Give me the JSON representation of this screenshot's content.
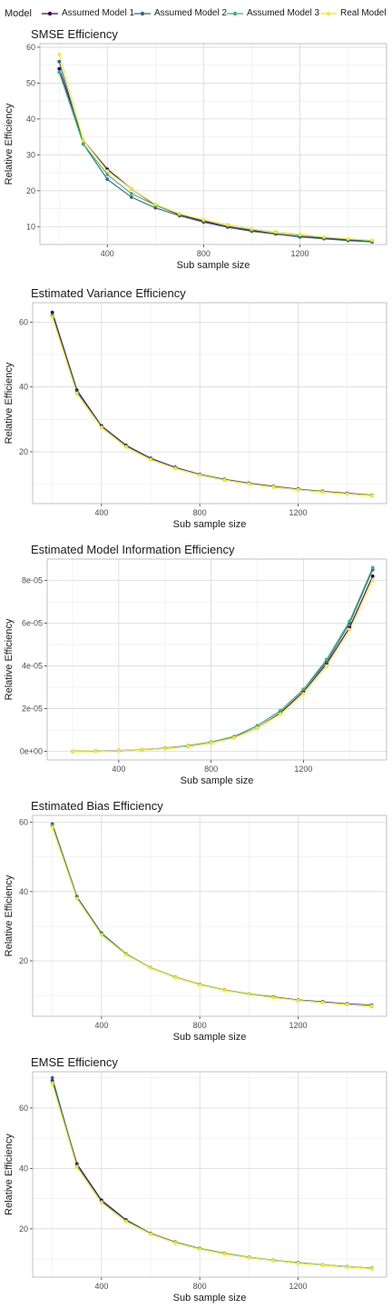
{
  "legend": {
    "title": "Model",
    "items": [
      {
        "label": "Assumed Model 1",
        "color": "#440154"
      },
      {
        "label": "Assumed Model 2",
        "color": "#31688E"
      },
      {
        "label": "Assumed Model 3",
        "color": "#35B779"
      },
      {
        "label": "Real Model",
        "color": "#FDE725"
      }
    ]
  },
  "chart_data": [
    {
      "type": "line",
      "title": "SMSE Efficiency",
      "xlabel": "Sub sample size",
      "ylabel": "Relative Efficiency",
      "xlim": [
        120,
        1560
      ],
      "ylim": [
        5,
        61
      ],
      "xticks": [
        400,
        800,
        1200
      ],
      "xtick_labels": [
        "400",
        "800",
        "1200"
      ],
      "yticks": [
        10,
        20,
        30,
        40,
        50,
        60
      ],
      "ytick_labels": [
        "10",
        "20",
        "30",
        "40",
        "50",
        "60"
      ],
      "grid": true,
      "x": [
        200,
        300,
        400,
        500,
        600,
        700,
        800,
        900,
        1000,
        1100,
        1200,
        1300,
        1400,
        1500
      ],
      "series": [
        {
          "name": "Assumed Model 1",
          "values": [
            54,
            34,
            26,
            20.5,
            16,
            13.3,
            11.5,
            10.0,
            8.9,
            8.0,
            7.2,
            6.8,
            6.3,
            6.0
          ]
        },
        {
          "name": "Assumed Model 2",
          "values": [
            56,
            33,
            23.2,
            18.2,
            15.2,
            13.0,
            11.2,
            9.8,
            8.7,
            7.9,
            7.1,
            6.6,
            6.1,
            5.7
          ]
        },
        {
          "name": "Assumed Model 3",
          "values": [
            53,
            33,
            24.5,
            19.2,
            16.0,
            13.5,
            11.8,
            10.5,
            9.2,
            8.5,
            7.6,
            7.0,
            6.5,
            6.0
          ]
        },
        {
          "name": "Real Model",
          "values": [
            58,
            34,
            25.5,
            20.5,
            16.2,
            13.6,
            11.9,
            10.5,
            9.3,
            8.5,
            7.8,
            7.1,
            6.6,
            6.2
          ]
        }
      ]
    },
    {
      "type": "line",
      "title": "Estimated Variance Efficiency",
      "xlabel": "Sub sample size",
      "ylabel": "Relative Efficiency",
      "xlim": [
        120,
        1560
      ],
      "ylim": [
        4,
        66
      ],
      "xticks": [
        400,
        800,
        1200
      ],
      "xtick_labels": [
        "400",
        "800",
        "1200"
      ],
      "yticks": [
        20,
        40,
        60
      ],
      "ytick_labels": [
        "20",
        "40",
        "60"
      ],
      "grid": true,
      "x": [
        200,
        300,
        400,
        500,
        600,
        700,
        800,
        900,
        1000,
        1100,
        1200,
        1300,
        1400,
        1500
      ],
      "series": [
        {
          "name": "Assumed Model 1",
          "values": [
            63,
            39,
            28,
            22,
            18,
            15.2,
            13,
            11.5,
            10.3,
            9.3,
            8.5,
            7.8,
            7.2,
            6.6
          ]
        },
        {
          "name": "Assumed Model 2",
          "values": [
            62,
            38.5,
            27.7,
            21.8,
            17.8,
            15.0,
            12.9,
            11.4,
            10.2,
            9.2,
            8.4,
            7.7,
            7.1,
            6.5
          ]
        },
        {
          "name": "Assumed Model 3",
          "values": [
            62,
            38,
            27.5,
            21.5,
            17.6,
            14.9,
            12.8,
            11.3,
            10.1,
            9.1,
            8.3,
            7.6,
            7.0,
            6.5
          ]
        },
        {
          "name": "Real Model",
          "values": [
            61.5,
            38,
            27.5,
            21.5,
            17.6,
            14.9,
            12.8,
            11.3,
            10.1,
            9.1,
            8.3,
            7.6,
            7.0,
            6.5
          ]
        }
      ]
    },
    {
      "type": "line",
      "title": "Estimated Model Information Efficiency",
      "xlabel": "Sub sample size",
      "ylabel": "Relative Efficiency",
      "xlim": [
        90,
        1560
      ],
      "ylim": [
        -4e-06,
        9e-05
      ],
      "xticks": [
        400,
        800,
        1200
      ],
      "xtick_labels": [
        "400",
        "800",
        "1200"
      ],
      "yticks": [
        0,
        2e-05,
        4e-05,
        6e-05,
        8e-05
      ],
      "ytick_labels": [
        "0e+00",
        "2e-05",
        "4e-05",
        "6e-05",
        "8e-05"
      ],
      "grid": true,
      "x": [
        200,
        300,
        400,
        500,
        600,
        700,
        800,
        900,
        1000,
        1100,
        1200,
        1300,
        1400,
        1500
      ],
      "series": [
        {
          "name": "Assumed Model 1",
          "values": [
            1e-07,
            2e-07,
            4e-07,
            8e-07,
            1.4e-06,
            2.4e-06,
            4e-06,
            6.5e-06,
            1.1e-05,
            1.8e-05,
            2.8e-05,
            4.1e-05,
            5.8e-05,
            8.2e-05
          ]
        },
        {
          "name": "Assumed Model 2",
          "values": [
            1e-07,
            2e-07,
            4e-07,
            8e-07,
            1.5e-06,
            2.5e-06,
            4.1e-06,
            6.8e-06,
            1.2e-05,
            1.9e-05,
            2.9e-05,
            4.2e-05,
            6e-05,
            8.5e-05
          ]
        },
        {
          "name": "Assumed Model 3",
          "values": [
            1e-07,
            2e-07,
            4e-07,
            9e-07,
            1.6e-06,
            2.7e-06,
            4.4e-06,
            7e-06,
            1.2e-05,
            1.9e-05,
            2.9e-05,
            4.3e-05,
            6.1e-05,
            8.6e-05
          ]
        },
        {
          "name": "Real Model",
          "values": [
            1e-07,
            2e-07,
            4e-07,
            8e-07,
            1.4e-06,
            2.4e-06,
            4e-06,
            6.4e-06,
            1.1e-05,
            1.75e-05,
            2.7e-05,
            4e-05,
            5.7e-05,
            8e-05
          ]
        }
      ]
    },
    {
      "type": "line",
      "title": "Estimated Bias Efficiency",
      "xlabel": "Sub sample size",
      "ylabel": "Relative Efficiency",
      "xlim": [
        120,
        1560
      ],
      "ylim": [
        4,
        62
      ],
      "xticks": [
        400,
        800,
        1200
      ],
      "xtick_labels": [
        "400",
        "800",
        "1200"
      ],
      "yticks": [
        20,
        40,
        60
      ],
      "ytick_labels": [
        "20",
        "40",
        "60"
      ],
      "grid": true,
      "x": [
        200,
        300,
        400,
        500,
        600,
        700,
        800,
        900,
        1000,
        1100,
        1200,
        1300,
        1400,
        1500
      ],
      "series": [
        {
          "name": "Assumed Model 1",
          "values": [
            59.5,
            38.5,
            28,
            22,
            18,
            15.3,
            13.2,
            11.6,
            10.4,
            9.6,
            8.7,
            8.2,
            7.6,
            7.2
          ]
        },
        {
          "name": "Assumed Model 2",
          "values": [
            59.5,
            38.5,
            28,
            22,
            18,
            15.3,
            13.2,
            11.6,
            10.4,
            9.5,
            8.7,
            8.1,
            7.5,
            7.1
          ]
        },
        {
          "name": "Assumed Model 3",
          "values": [
            59,
            38,
            27.7,
            22,
            18,
            15.3,
            13.2,
            11.6,
            10.4,
            9.5,
            8.6,
            8.0,
            7.4,
            6.9
          ]
        },
        {
          "name": "Real Model",
          "values": [
            58.5,
            38,
            27.5,
            21.8,
            17.9,
            15.2,
            13.1,
            11.5,
            10.3,
            9.4,
            8.6,
            8.0,
            7.4,
            7.0
          ]
        }
      ]
    },
    {
      "type": "line",
      "title": "EMSE Efficiency",
      "xlabel": "Sub sample size",
      "ylabel": "Relative Efficiency",
      "xlim": [
        120,
        1560
      ],
      "ylim": [
        4,
        72
      ],
      "xticks": [
        400,
        800,
        1200
      ],
      "xtick_labels": [
        "400",
        "800",
        "1200"
      ],
      "yticks": [
        20,
        40,
        60
      ],
      "ytick_labels": [
        "20",
        "40",
        "60"
      ],
      "grid": true,
      "x": [
        200,
        300,
        400,
        500,
        600,
        700,
        800,
        900,
        1000,
        1100,
        1200,
        1300,
        1400,
        1500
      ],
      "series": [
        {
          "name": "Assumed Model 1",
          "values": [
            69,
            41.5,
            29.5,
            23,
            18.5,
            15.6,
            13.5,
            11.9,
            10.6,
            9.6,
            8.8,
            8.1,
            7.5,
            7.0
          ]
        },
        {
          "name": "Assumed Model 2",
          "values": [
            70,
            41,
            29,
            22.8,
            18.4,
            15.5,
            13.4,
            11.8,
            10.5,
            9.5,
            8.7,
            8.0,
            7.4,
            6.9
          ]
        },
        {
          "name": "Assumed Model 3",
          "values": [
            68.5,
            40.5,
            28.8,
            22.5,
            18.4,
            15.5,
            13.5,
            11.9,
            10.6,
            9.6,
            8.8,
            8.1,
            7.5,
            7.0
          ]
        },
        {
          "name": "Real Model",
          "values": [
            68,
            40.5,
            28.7,
            22.4,
            18.3,
            15.4,
            13.3,
            11.7,
            10.5,
            9.5,
            8.6,
            8.0,
            7.4,
            6.9
          ]
        }
      ]
    }
  ]
}
